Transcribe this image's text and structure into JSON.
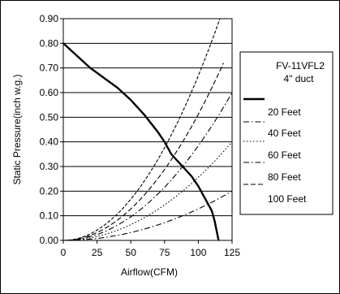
{
  "chart_data": {
    "type": "line",
    "xlabel": "Airflow(CFM)",
    "ylabel": "Static Pressure(inch w.g.)",
    "xlim": [
      0,
      125
    ],
    "ylim": [
      0,
      0.9
    ],
    "x_ticks": [
      "0",
      "25",
      "50",
      "75",
      "100",
      "125"
    ],
    "y_ticks": [
      "0.00",
      "0.10",
      "0.20",
      "0.30",
      "0.40",
      "0.50",
      "0.60",
      "0.70",
      "0.80",
      "0.90"
    ],
    "grid": "horizontal",
    "legend_position": "right",
    "series": [
      {
        "name": "FV-11VFL2\n4\" duct",
        "style": "solid",
        "x": [
          0,
          10,
          20,
          25,
          30,
          40,
          50,
          60,
          70,
          75,
          80,
          90,
          95,
          100,
          105,
          110,
          112,
          115
        ],
        "y": [
          0.8,
          0.75,
          0.7,
          0.68,
          0.66,
          0.62,
          0.57,
          0.51,
          0.44,
          0.4,
          0.35,
          0.29,
          0.26,
          0.22,
          0.17,
          0.12,
          0.08,
          0.0
        ]
      },
      {
        "name": "20 Feet",
        "style": "dash-dot",
        "x": [
          0,
          25,
          50,
          75,
          100,
          125
        ],
        "y": [
          0,
          0.008,
          0.032,
          0.072,
          0.128,
          0.2
        ]
      },
      {
        "name": "40 Feet",
        "style": "dotted",
        "x": [
          0,
          25,
          50,
          75,
          100,
          125
        ],
        "y": [
          0,
          0.016,
          0.064,
          0.144,
          0.256,
          0.4
        ]
      },
      {
        "name": "60 Feet",
        "style": "dash-dot",
        "x": [
          0,
          25,
          50,
          75,
          100,
          125
        ],
        "y": [
          0,
          0.024,
          0.096,
          0.216,
          0.384,
          0.6
        ]
      },
      {
        "name": "80 Feet",
        "style": "dashed",
        "x": [
          0,
          25,
          50,
          75,
          100,
          118.6
        ],
        "y": [
          0,
          0.032,
          0.128,
          0.288,
          0.512,
          0.72
        ]
      },
      {
        "name": "100 Feet",
        "style": "short-dash",
        "x": [
          0,
          25,
          50,
          75,
          100,
          116
        ],
        "y": [
          0,
          0.04,
          0.16,
          0.36,
          0.64,
          0.9
        ]
      }
    ]
  }
}
